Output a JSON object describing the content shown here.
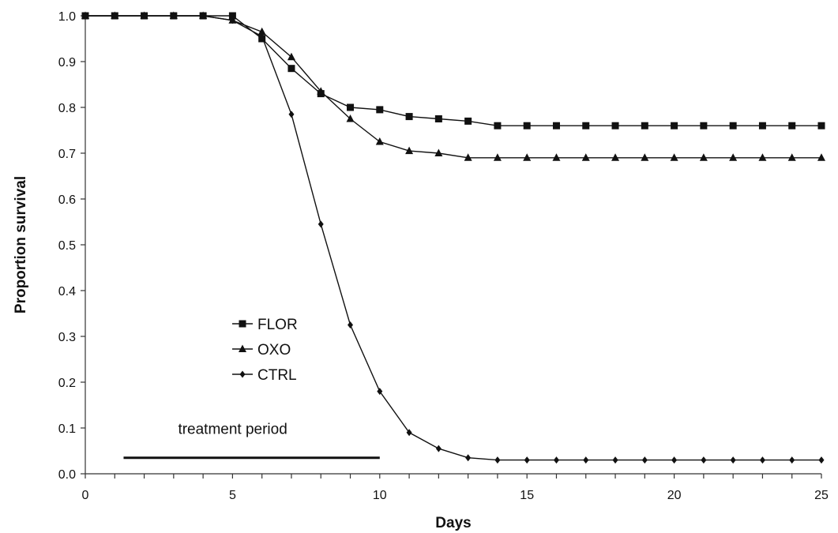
{
  "chart_data": {
    "type": "line",
    "xlabel": "Days",
    "ylabel": "Proportion survival",
    "xlim": [
      0,
      25
    ],
    "ylim": [
      0,
      1
    ],
    "x_ticks": [
      0,
      5,
      10,
      15,
      20,
      25
    ],
    "y_ticks": [
      0.0,
      0.1,
      0.2,
      0.3,
      0.4,
      0.5,
      0.6,
      0.7,
      0.8,
      0.9,
      1.0
    ],
    "x_tick_labels": [
      "0",
      "5",
      "10",
      "15",
      "20",
      "25"
    ],
    "y_tick_labels": [
      "0.0",
      "0.1",
      "0.2",
      "0.3",
      "0.4",
      "0.5",
      "0.6",
      "0.7",
      "0.8",
      "0.9",
      "1.0"
    ],
    "grid": false,
    "legend_position": "left-center",
    "x": [
      0,
      1,
      2,
      3,
      4,
      5,
      6,
      7,
      8,
      9,
      10,
      11,
      12,
      13,
      14,
      15,
      16,
      17,
      18,
      19,
      20,
      21,
      22,
      23,
      24,
      25
    ],
    "series": [
      {
        "name": "FLOR",
        "marker": "square",
        "values": [
          1.0,
          1.0,
          1.0,
          1.0,
          1.0,
          1.0,
          0.95,
          0.885,
          0.83,
          0.8,
          0.795,
          0.78,
          0.775,
          0.77,
          0.76,
          0.76,
          0.76,
          0.76,
          0.76,
          0.76,
          0.76,
          0.76,
          0.76,
          0.76,
          0.76,
          0.76
        ]
      },
      {
        "name": "OXO",
        "marker": "triangle",
        "values": [
          1.0,
          1.0,
          1.0,
          1.0,
          1.0,
          0.99,
          0.965,
          0.91,
          0.835,
          0.775,
          0.725,
          0.705,
          0.7,
          0.69,
          0.69,
          0.69,
          0.69,
          0.69,
          0.69,
          0.69,
          0.69,
          0.69,
          0.69,
          0.69,
          0.69,
          0.69
        ]
      },
      {
        "name": "CTRL",
        "marker": "diamond",
        "values": [
          1.0,
          1.0,
          1.0,
          1.0,
          1.0,
          0.99,
          0.955,
          0.785,
          0.545,
          0.325,
          0.18,
          0.09,
          0.055,
          0.035,
          0.03,
          0.03,
          0.03,
          0.03,
          0.03,
          0.03,
          0.03,
          0.03,
          0.03,
          0.03,
          0.03,
          0.03
        ]
      }
    ],
    "annotations": [
      {
        "text": "treatment period",
        "x_range": [
          1.3,
          10
        ],
        "y": 0.035
      }
    ],
    "colors": {
      "line": "#111111",
      "marker": "#111111",
      "axis": "#333333",
      "background": "#ffffff"
    }
  }
}
